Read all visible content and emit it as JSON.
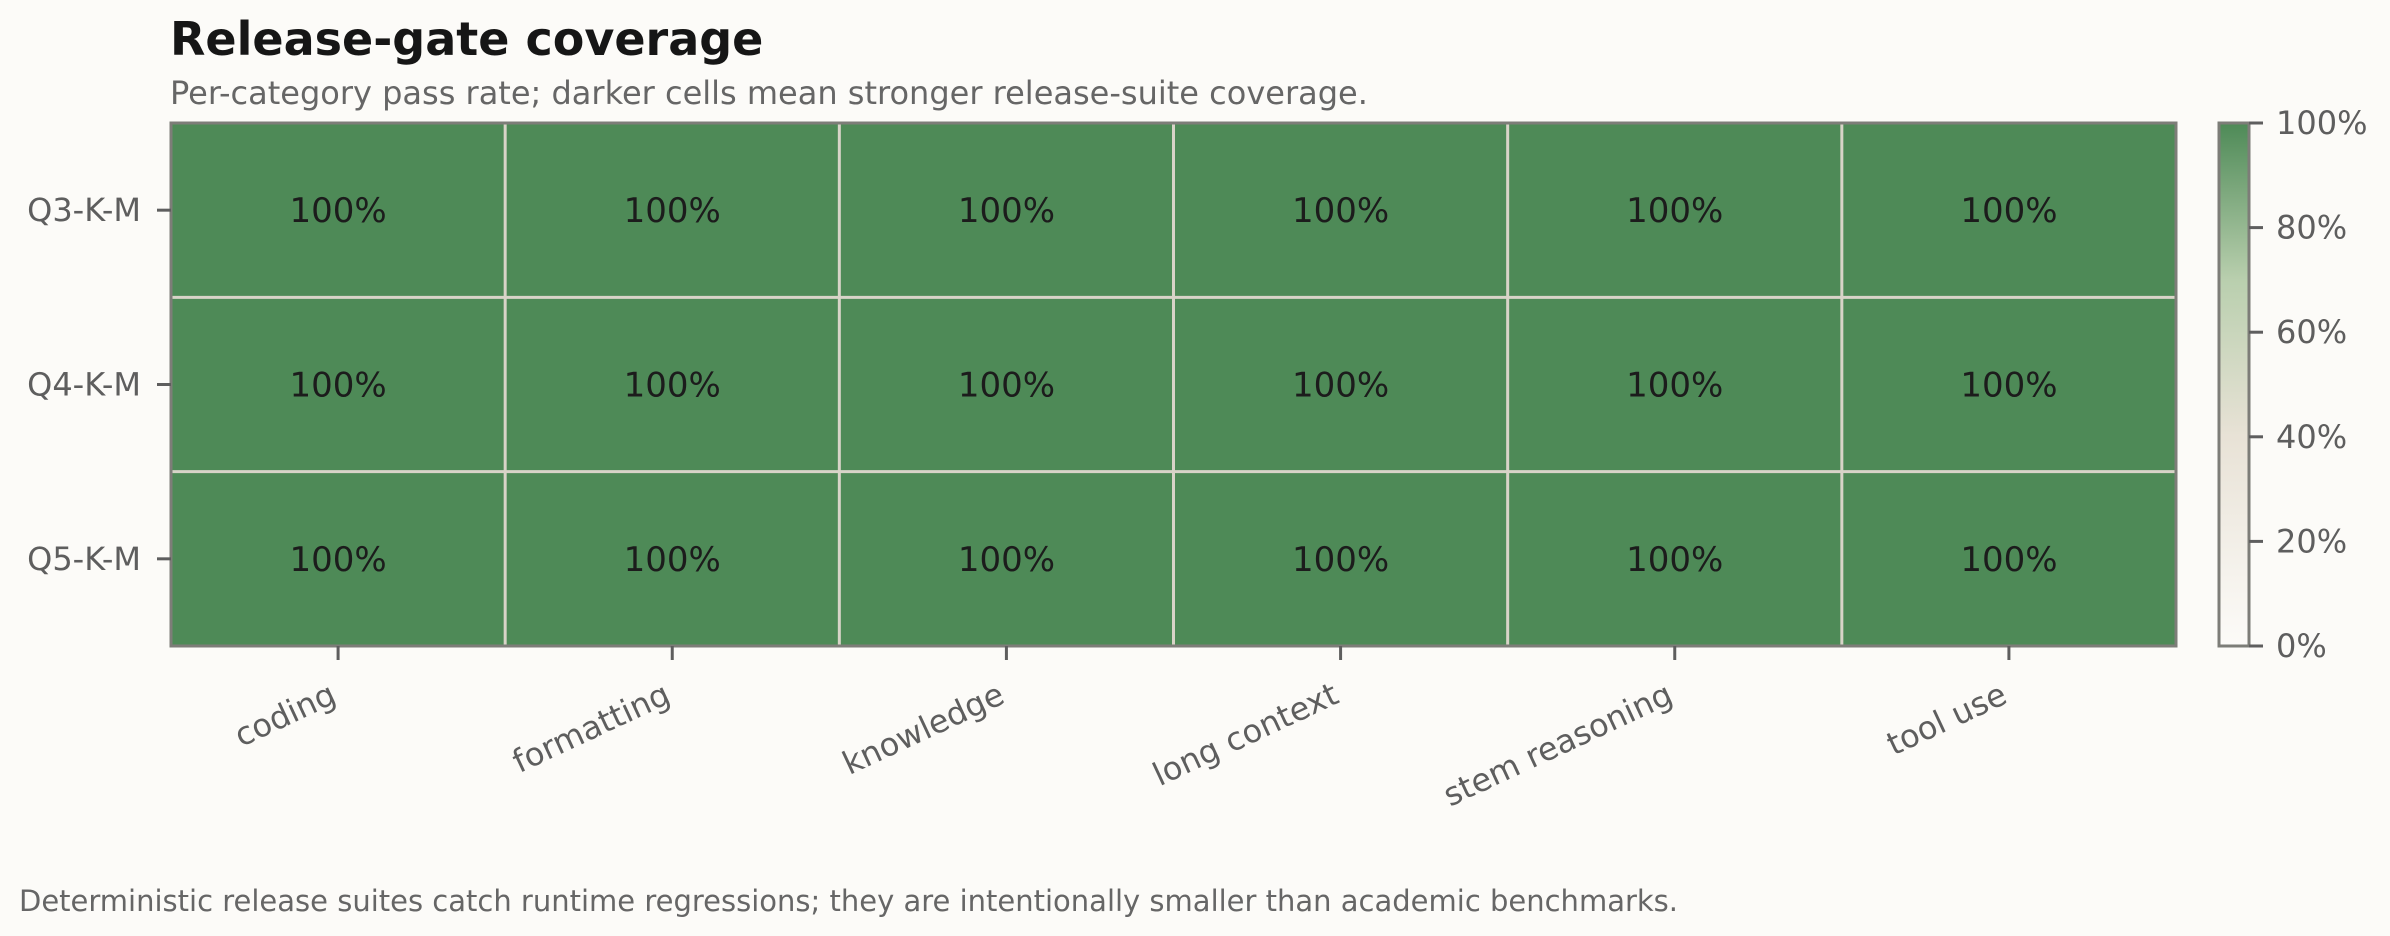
{
  "chart_data": {
    "type": "heatmap",
    "title": "Release-gate coverage",
    "subtitle": "Per-category pass rate; darker cells mean stronger release-suite coverage.",
    "rows": [
      "Q3-K-M",
      "Q4-K-M",
      "Q5-K-M"
    ],
    "columns": [
      "coding",
      "formatting",
      "knowledge",
      "long context",
      "stem reasoning",
      "tool use"
    ],
    "values": [
      [
        100,
        100,
        100,
        100,
        100,
        100
      ],
      [
        100,
        100,
        100,
        100,
        100,
        100
      ],
      [
        100,
        100,
        100,
        100,
        100,
        100
      ]
    ],
    "cell_labels": [
      [
        "100%",
        "100%",
        "100%",
        "100%",
        "100%",
        "100%"
      ],
      [
        "100%",
        "100%",
        "100%",
        "100%",
        "100%",
        "100%"
      ],
      [
        "100%",
        "100%",
        "100%",
        "100%",
        "100%",
        "100%"
      ]
    ],
    "colorbar": {
      "range": [
        0,
        100
      ],
      "ticks": [
        0,
        20,
        40,
        60,
        80,
        100
      ],
      "tick_labels": [
        "0%",
        "20%",
        "40%",
        "60%",
        "80%",
        "100%"
      ],
      "colors": [
        "#fcfbf8",
        "#e8e2d6",
        "#4e8a57"
      ]
    },
    "footnote": "Deterministic release suites catch runtime regressions; they are intentionally smaller than academic benchmarks."
  }
}
